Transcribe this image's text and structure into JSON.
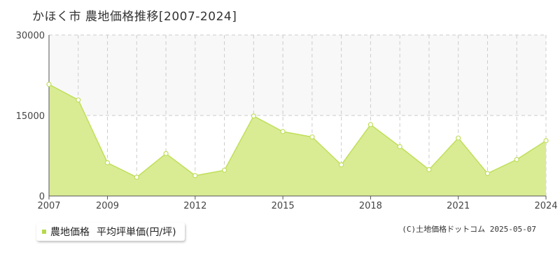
{
  "title": "かほく市 農地価格推移[2007-2024]",
  "legend": {
    "series_label": "農地価格",
    "unit_label": "平均坪単価(円/坪)"
  },
  "copyright": "(C)土地価格ドットコム 2025-05-07",
  "colors": {
    "line": "#c0df5a",
    "fill": "#d9ec94",
    "marker_fill": "#ffffff",
    "upper_band": "#f8f8f8",
    "grid": "#cccccc",
    "legend_swatch": "#b5d94a"
  },
  "chart_data": {
    "type": "area",
    "title": "かほく市 農地価格推移[2007-2024]",
    "xlabel": "",
    "ylabel": "",
    "x": [
      2007,
      2008,
      2009,
      2010,
      2011,
      2012,
      2013,
      2014,
      2015,
      2016,
      2017,
      2018,
      2019,
      2020,
      2021,
      2022,
      2023,
      2024
    ],
    "series": [
      {
        "name": "農地価格",
        "values": [
          20800,
          17900,
          6200,
          3500,
          7900,
          3800,
          4800,
          14900,
          12000,
          11000,
          5800,
          13300,
          9200,
          4900,
          10800,
          4200,
          6800,
          10300
        ]
      }
    ],
    "xlim": [
      2007,
      2024
    ],
    "ylim": [
      0,
      30000
    ],
    "x_tick_labels": [
      "2007",
      "2009",
      "2012",
      "2015",
      "2018",
      "2021",
      "2024"
    ],
    "y_tick_labels": [
      "0",
      "15000",
      "30000"
    ],
    "grid": true,
    "legend_position": "bottom-left"
  }
}
